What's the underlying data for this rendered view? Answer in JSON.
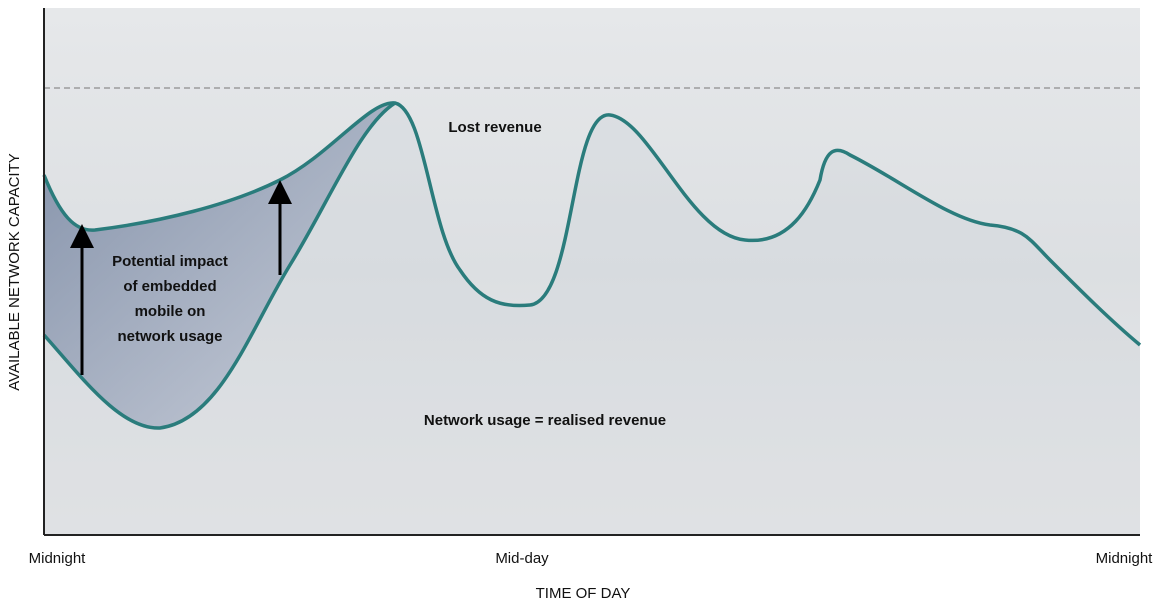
{
  "axes": {
    "y_label": "AVAILABLE NETWORK CAPACITY",
    "x_label": "TIME OF DAY",
    "x_ticks": [
      "Midnight",
      "Mid-day",
      "Midnight"
    ]
  },
  "annotations": {
    "lost_revenue": "Lost revenue",
    "impact": [
      "Potential impact",
      "of embedded",
      "mobile on",
      "network usage"
    ],
    "usage": "Network usage = realised revenue"
  }
}
